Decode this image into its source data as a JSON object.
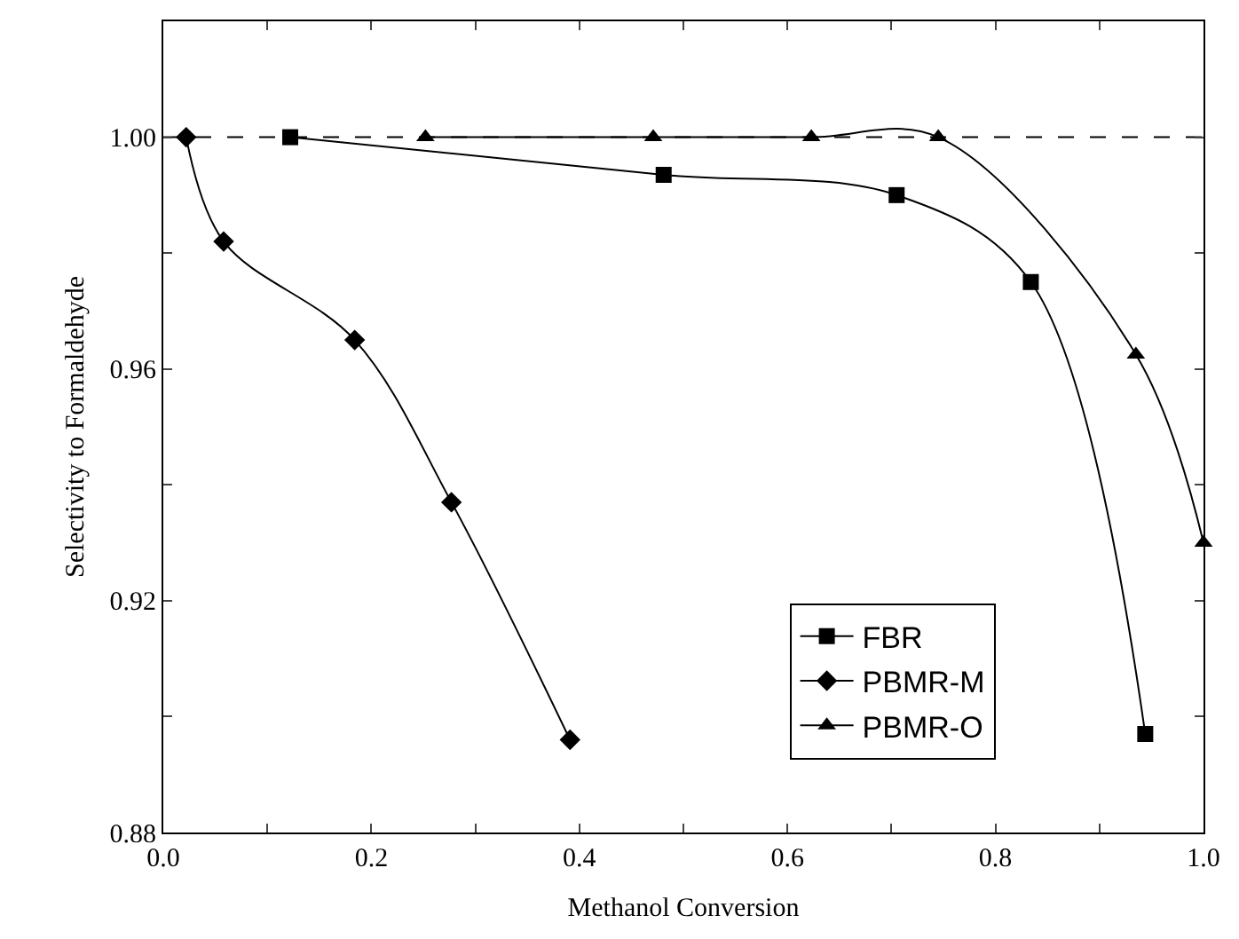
{
  "chart_data": {
    "type": "line",
    "xlabel": "Methanol Conversion",
    "ylabel": "Selectivity to Formaldehyde",
    "xlim": [
      0,
      1
    ],
    "ylim": [
      0.88,
      1.02
    ],
    "xticks": [
      {
        "value": 0,
        "label": "0.0"
      },
      {
        "value": 0.1,
        "label": null
      },
      {
        "value": 0.2,
        "label": "0.2"
      },
      {
        "value": 0.3,
        "label": null
      },
      {
        "value": 0.4,
        "label": "0.4"
      },
      {
        "value": 0.5,
        "label": null
      },
      {
        "value": 0.6,
        "label": "0.6"
      },
      {
        "value": 0.7,
        "label": null
      },
      {
        "value": 0.8,
        "label": "0.8"
      },
      {
        "value": 0.9,
        "label": null
      },
      {
        "value": 1,
        "label": "1.0"
      }
    ],
    "yticks": [
      0.88,
      {
        "value": 0.9,
        "label": null
      },
      0.92,
      {
        "value": 0.94,
        "label": null
      },
      0.96,
      {
        "value": 0.98,
        "label": null
      },
      {
        "value": 1,
        "label": "1.00"
      },
      {
        "value": 1.02,
        "label": null
      }
    ],
    "series": [
      {
        "name": "FBR",
        "color": "#000000",
        "marker": "square",
        "x": [
          0.122,
          0.481,
          0.705,
          0.834,
          0.944
        ],
        "values": [
          1.0,
          0.9935,
          0.99,
          0.975,
          0.897
        ]
      },
      {
        "name": "PBMR-M",
        "color": "#000000",
        "marker": "diamond",
        "x": [
          0.022,
          0.058,
          0.184,
          0.277,
          0.391
        ],
        "values": [
          1.0,
          0.982,
          0.965,
          0.937,
          0.896
        ]
      },
      {
        "name": "PBMR-O",
        "color": "#000000",
        "marker": "triangle",
        "x": [
          0.252,
          0.471,
          0.623,
          0.745,
          0.935,
          1.0
        ],
        "values": [
          1.0,
          1.0,
          1.0,
          1.0,
          0.9625,
          0.93
        ]
      }
    ],
    "ref_lines": [
      {
        "axis": "y",
        "value": 1.0,
        "label": null,
        "color": "#000000",
        "line_style": "dashed"
      }
    ],
    "grid": false,
    "legend": "bottom right",
    "line_style": "solid"
  }
}
